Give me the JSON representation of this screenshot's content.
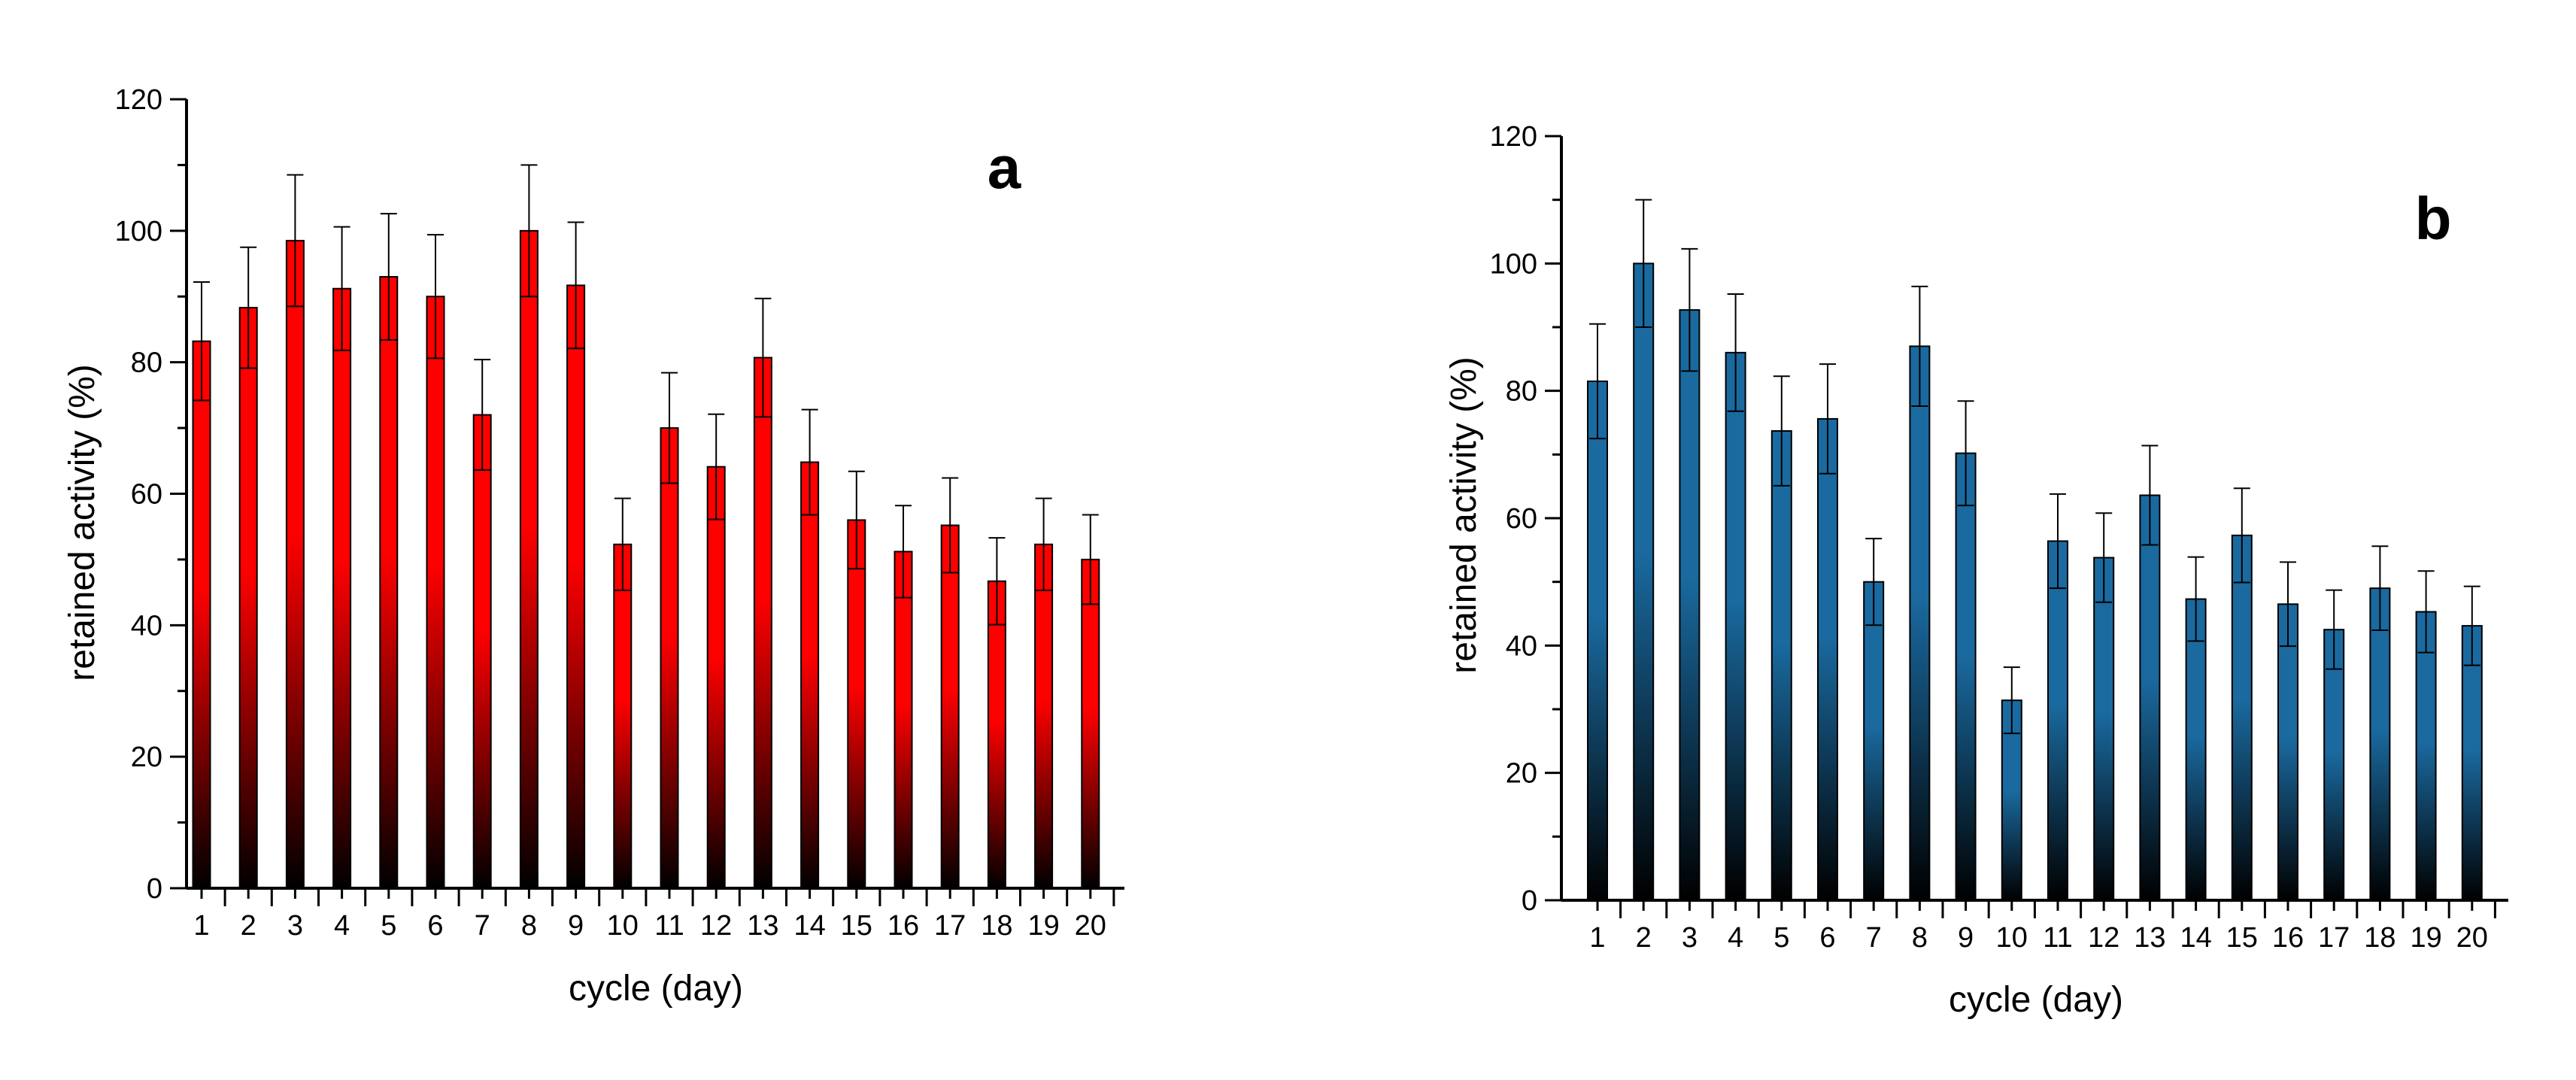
{
  "chart_data": [
    {
      "type": "bar",
      "panel_label": "a",
      "title": "",
      "xlabel": "cycle (day)",
      "ylabel": "retained activity (%)",
      "ylim": [
        0,
        120
      ],
      "yticks": [
        0,
        20,
        40,
        60,
        80,
        100,
        120
      ],
      "categories": [
        "1",
        "2",
        "3",
        "4",
        "5",
        "6",
        "7",
        "8",
        "9",
        "10",
        "11",
        "12",
        "13",
        "14",
        "15",
        "16",
        "17",
        "18",
        "19",
        "20"
      ],
      "values": [
        83.2,
        88.3,
        98.5,
        91.2,
        93.0,
        90.0,
        72.0,
        100.0,
        91.7,
        52.3,
        70.0,
        64.1,
        80.7,
        64.8,
        56.0,
        51.2,
        55.2,
        46.7,
        52.3,
        50.0
      ],
      "errors": [
        9.0,
        9.2,
        10.0,
        9.4,
        9.6,
        9.4,
        8.4,
        10.0,
        9.6,
        7.0,
        8.4,
        8.0,
        9.0,
        8.0,
        7.4,
        7.0,
        7.2,
        6.6,
        7.0,
        6.8
      ],
      "bar_color": "#ff0000",
      "legend": "none"
    },
    {
      "type": "bar",
      "panel_label": "b",
      "title": "",
      "xlabel": "cycle (day)",
      "ylabel": "retained activity (%)",
      "ylim": [
        0,
        120
      ],
      "yticks": [
        0,
        20,
        40,
        60,
        80,
        100,
        120
      ],
      "categories": [
        "1",
        "2",
        "3",
        "4",
        "5",
        "6",
        "7",
        "8",
        "9",
        "10",
        "11",
        "12",
        "13",
        "14",
        "15",
        "16",
        "17",
        "18",
        "19",
        "20"
      ],
      "values": [
        81.5,
        100.0,
        92.7,
        86.0,
        73.7,
        75.6,
        50.0,
        87.0,
        70.2,
        31.4,
        56.4,
        53.8,
        63.6,
        47.3,
        57.3,
        46.5,
        42.5,
        49.0,
        45.3,
        43.1
      ],
      "errors": [
        9.0,
        10.0,
        9.6,
        9.2,
        8.6,
        8.6,
        6.8,
        9.4,
        8.2,
        5.2,
        7.4,
        7.0,
        7.8,
        6.6,
        7.4,
        6.6,
        6.2,
        6.6,
        6.4,
        6.2
      ],
      "bar_color": "#1a6aa0",
      "legend": "none"
    }
  ]
}
